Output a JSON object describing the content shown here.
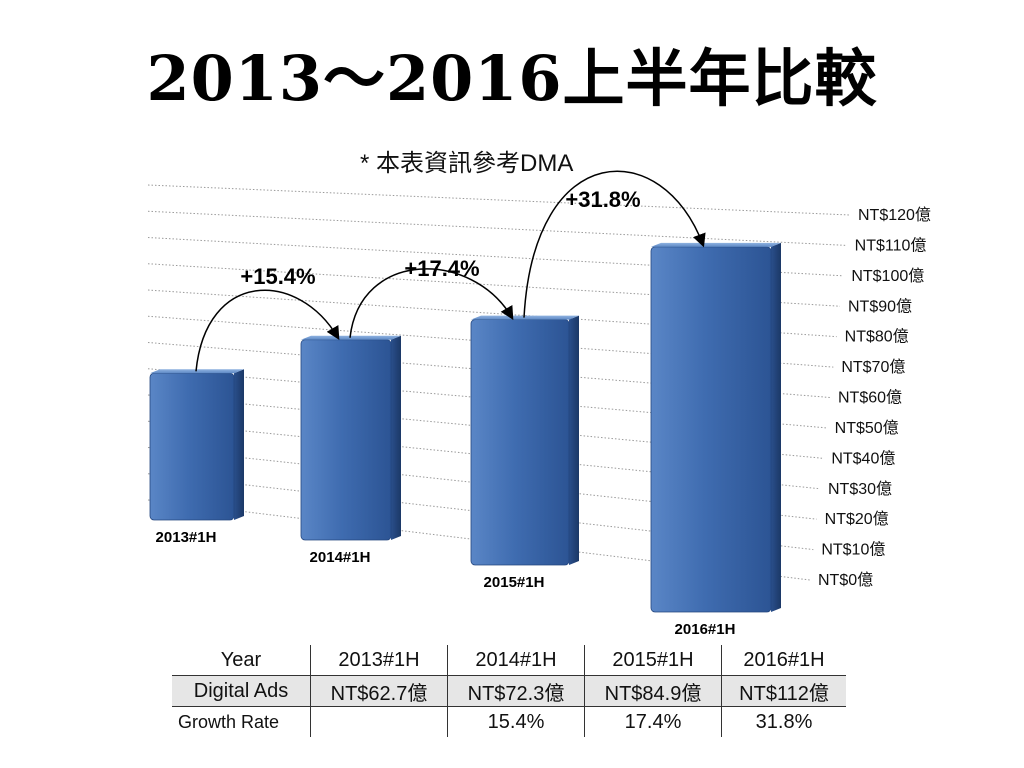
{
  "title": "2013～2016上半年比較",
  "subtitle": "* 本表資訊參考DMA",
  "colors": {
    "bar": "#3d6aae",
    "bar_dark": "#23467e",
    "bar_light": "#6f97cf",
    "grid": "#9a9a9a",
    "table_highlight": "#e6e6e6"
  },
  "chart_data": {
    "type": "bar",
    "title": "2013～2016上半年比較",
    "categories": [
      "2013#1H",
      "2014#1H",
      "2015#1H",
      "2016#1H"
    ],
    "values": [
      62.7,
      72.3,
      84.9,
      112
    ],
    "ylim": [
      0,
      120
    ],
    "y_ticks": [
      "NT$0億",
      "NT$10億",
      "NT$20億",
      "NT$30億",
      "NT$40億",
      "NT$50億",
      "NT$60億",
      "NT$70億",
      "NT$80億",
      "NT$90億",
      "NT$100億",
      "NT$110億",
      "NT$120億"
    ],
    "growth_annotations": [
      "+15.4%",
      "+17.4%",
      "+31.8%"
    ],
    "grid": true,
    "legend": "none"
  },
  "table": {
    "rows": [
      {
        "header": "Year",
        "cells": [
          "2013#1H",
          "2014#1H",
          "2015#1H",
          "2016#1H"
        ]
      },
      {
        "header": "Digital Ads",
        "cells": [
          "NT$62.7億",
          "NT$72.3億",
          "NT$84.9億",
          "NT$112億"
        ]
      },
      {
        "header": "Growth Rate",
        "cells": [
          "",
          "15.4%",
          "17.4%",
          "31.8%"
        ]
      }
    ]
  }
}
